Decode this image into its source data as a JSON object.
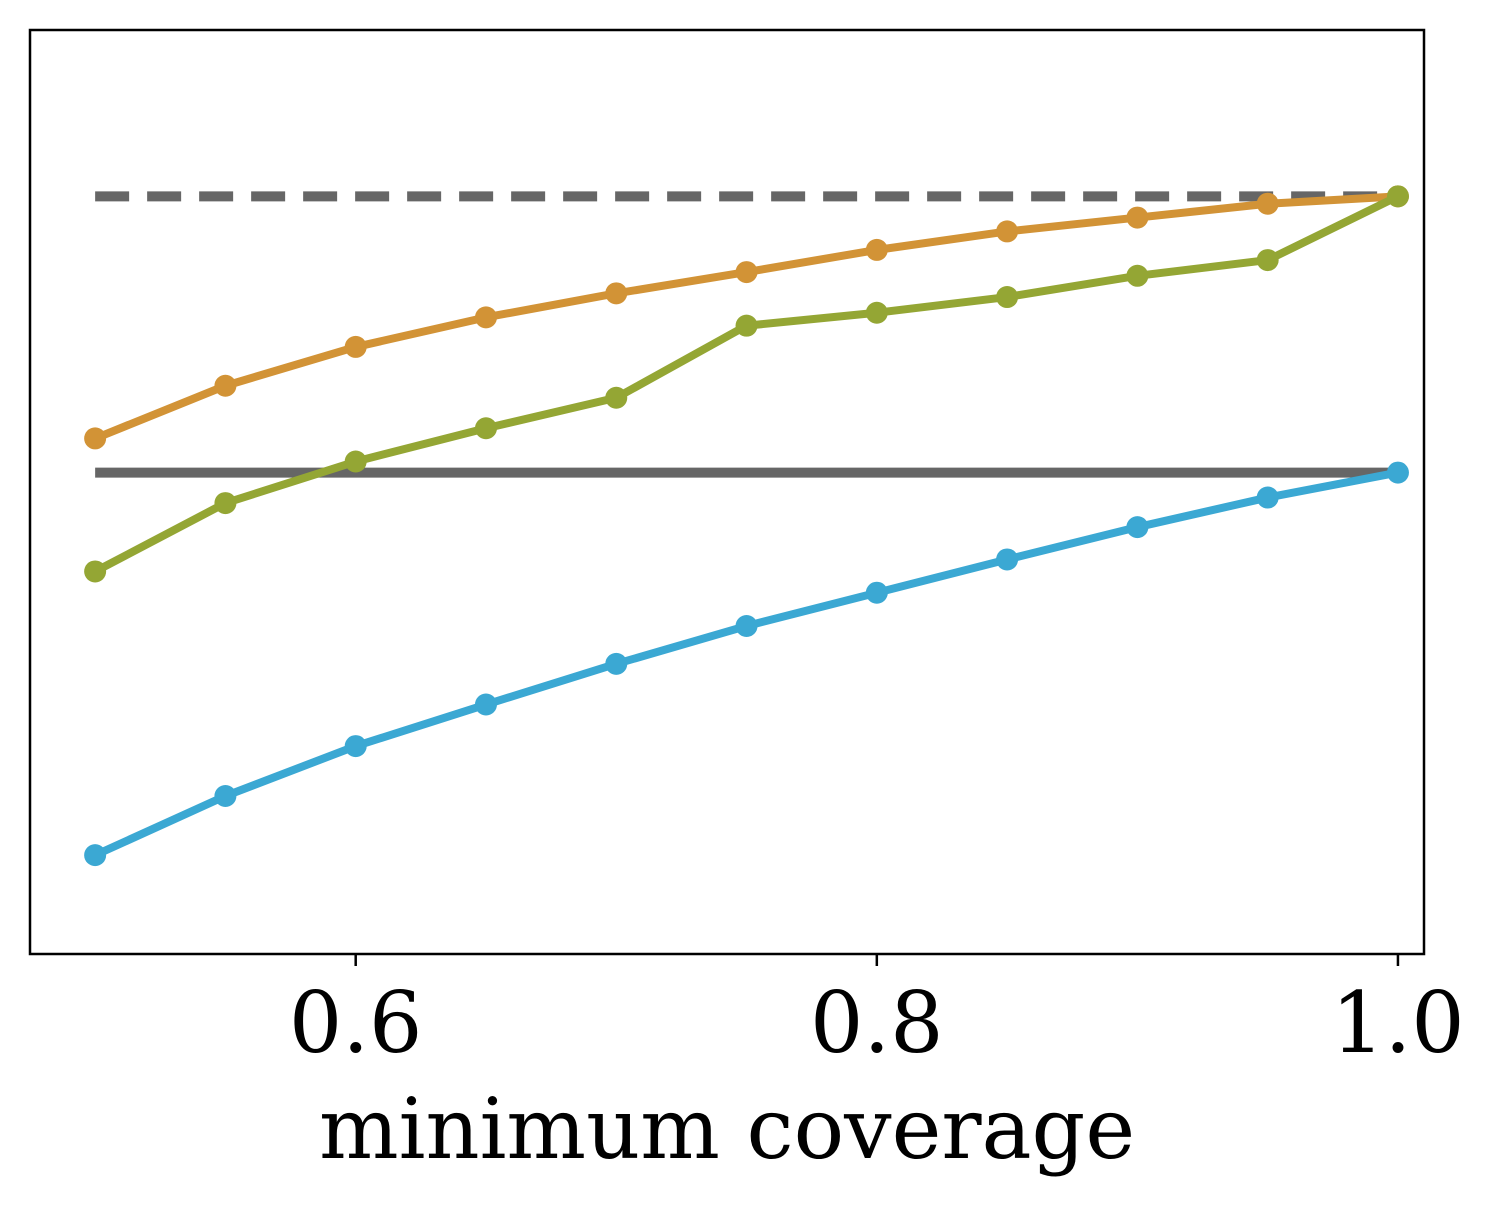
{
  "chart_data": {
    "type": "line",
    "xlabel": "minimum coverage",
    "ylabel": "",
    "xlim": [
      0.475,
      1.01
    ],
    "ylim": [
      0.0,
      1.0
    ],
    "x_ticks": [
      {
        "value": 0.6,
        "label": "0.6"
      },
      {
        "value": 0.8,
        "label": "0.8"
      },
      {
        "value": 1.0,
        "label": "1.0"
      }
    ],
    "y_ticks_shown": false,
    "grid": false,
    "legend": "none",
    "x": [
      0.5,
      0.55,
      0.6,
      0.65,
      0.7,
      0.75,
      0.8,
      0.85,
      0.9,
      0.95,
      1.0
    ],
    "series": [
      {
        "color": "#d29336",
        "style": "solid-markers",
        "values": [
          0.558,
          0.615,
          0.657,
          0.689,
          0.715,
          0.738,
          0.762,
          0.782,
          0.797,
          0.812,
          0.82
        ]
      },
      {
        "color": "#94a634",
        "style": "solid-markers",
        "values": [
          0.414,
          0.488,
          0.533,
          0.569,
          0.602,
          0.68,
          0.694,
          0.711,
          0.734,
          0.751,
          0.82
        ]
      },
      {
        "color": "#3ba8d3",
        "style": "solid-markers",
        "values": [
          0.107,
          0.171,
          0.225,
          0.27,
          0.314,
          0.355,
          0.391,
          0.427,
          0.462,
          0.494,
          0.521
        ]
      }
    ],
    "reference_lines": [
      {
        "color": "#666666",
        "style": "dashed",
        "y": 0.82,
        "x_from": 0.5,
        "x_to": 1.0
      },
      {
        "color": "#666666",
        "style": "solid",
        "y": 0.521,
        "x_from": 0.5,
        "x_to": 1.0
      }
    ]
  }
}
